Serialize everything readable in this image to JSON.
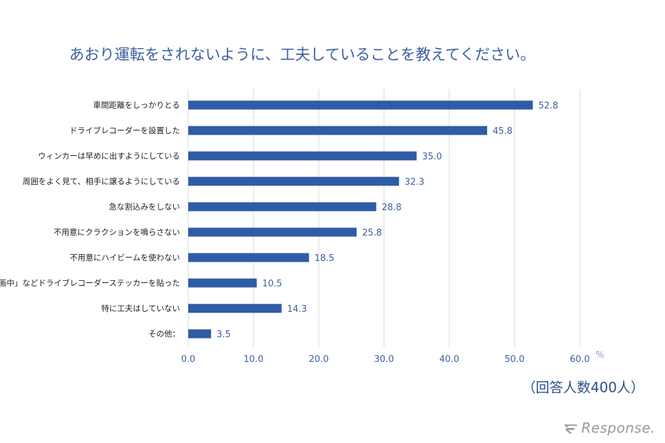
{
  "title": "あおり運転をされないように、工夫していることを教えてください。",
  "respondents": "（回答人数400人）",
  "unit": "%",
  "logo_text": "Response.",
  "colors": {
    "bar": "#2e5ca6",
    "label": "#3d5fa0",
    "grid": "#d9d9d9",
    "tick": "#3d5fa0"
  },
  "chart_data": {
    "type": "bar",
    "orientation": "horizontal",
    "categories": [
      "車間距離をしっかりとる",
      "ドライブレコーダーを設置した",
      "ウィンカーは早めに出すようにしている",
      "周囲をよく見て、相手に譲るようにしている",
      "急な割込みをしない",
      "不用意にクラクションを鳴らさない",
      "不用意にハイビームを使わない",
      "「録画中」などドライブレコーダーステッカーを貼った",
      "特に工夫はしていない",
      "その他："
    ],
    "values": [
      52.8,
      45.8,
      35.0,
      32.3,
      28.8,
      25.8,
      18.5,
      10.5,
      14.3,
      3.5
    ],
    "value_labels": [
      "52.8",
      "45.8",
      "35.0",
      "32.3",
      "28.8",
      "25.8",
      "18.5",
      "10.5",
      "14.3",
      "3.5"
    ],
    "xlim": [
      0,
      60
    ],
    "xticks": [
      "0.0",
      "10.0",
      "20.0",
      "30.0",
      "40.0",
      "50.0",
      "60.0"
    ],
    "xlabel": "%",
    "grid": true
  }
}
